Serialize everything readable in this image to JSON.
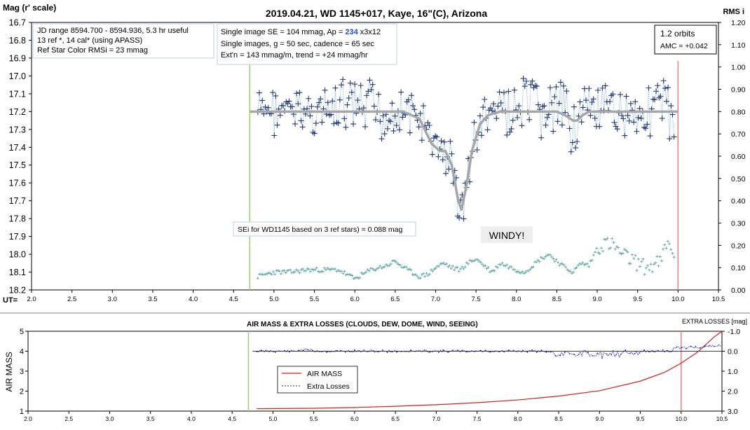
{
  "chart_data": [
    {
      "type": "scatter",
      "title": "2019.04.21, WD 1145+017, Kaye, 16\"(C), Arizona",
      "ylabel": "Mag (r' scale)",
      "ylabel_right": "RMS i",
      "xlabel": "UT=",
      "xlim": [
        2.0,
        10.5
      ],
      "ylim": [
        16.7,
        18.2
      ],
      "ylim_right": [
        0.0,
        1.2
      ],
      "x_ticks": [
        "2.0",
        "2.5",
        "3.0",
        "3.5",
        "4.0",
        "4.5",
        "5.0",
        "5.5",
        "6.0",
        "6.5",
        "7.0",
        "7.5",
        "8.0",
        "8.5",
        "9.0",
        "9.5",
        "10.0",
        "10.5"
      ],
      "y_ticks": [
        "16.7",
        "16.8",
        "16.9",
        "17.0",
        "17.1",
        "17.2",
        "17.3",
        "17.4",
        "17.5",
        "17.6",
        "17.7",
        "17.8",
        "17.9",
        "18.0",
        "18.1",
        "18.2"
      ],
      "y_right_ticks": [
        "1.20",
        "1.10",
        "1.00",
        "0.90",
        "0.80",
        "0.70",
        "0.60",
        "0.50",
        "0.40",
        "0.30",
        "0.20",
        "0.10",
        "0.00"
      ],
      "grid": false,
      "vlines": [
        {
          "x": 4.7,
          "color": "#9bd36b"
        },
        {
          "x": 10.0,
          "color": "#e88080"
        }
      ],
      "annotations": {
        "info_left": [
          "JD range 8594.700 - 8594.936, 5.3 hr useful",
          "13 ref *, 14 cal* (using APASS)",
          "Ref Star Color RMSi = 23 mmag"
        ],
        "info_mid_line1_prefix": "Single image SE = 104 mmag, Ap = ",
        "info_mid_ap": "234",
        "info_mid_line1_suffix": " x3x12",
        "info_mid_line2": "Single images, g = 50 sec, cadence = 65 sec",
        "info_mid_line3": "Ext'n = 143 mmag/m, trend = +24 mmag/hr",
        "orbits": "1.2 orbits",
        "amc": "AMC = +0.042",
        "sei": "SEi for WD1145 based on 3 ref stars) = 0.088 mag",
        "windy": "WINDY!"
      },
      "series": [
        {
          "name": "",
          "kind": "magnitude",
          "color": "#1f3a7a",
          "x_start": 4.8,
          "x_end": 9.95,
          "n_points": 280,
          "baseline": 17.2,
          "seed": 7
        },
        {
          "name": "",
          "kind": "model",
          "color": "#a6a6a6",
          "x": [
            4.7,
            6.6,
            6.8,
            6.95,
            7.05,
            7.12,
            7.2,
            7.28,
            7.32,
            7.38,
            7.45,
            7.55,
            7.65,
            7.8,
            8.0,
            8.5,
            8.6,
            8.7,
            8.75,
            8.82,
            8.9,
            9.0,
            10.0
          ],
          "y": [
            17.2,
            17.2,
            17.24,
            17.38,
            17.42,
            17.42,
            17.5,
            17.7,
            17.75,
            17.62,
            17.42,
            17.27,
            17.22,
            17.2,
            17.2,
            17.2,
            17.22,
            17.25,
            17.25,
            17.22,
            17.2,
            17.2,
            17.2
          ]
        },
        {
          "name": "",
          "kind": "rms",
          "color": "#5ea6a8",
          "x": [
            4.8,
            5.0,
            5.2,
            5.4,
            5.6,
            5.8,
            5.9,
            6.0,
            6.1,
            6.2,
            6.4,
            6.5,
            6.6,
            6.7,
            6.8,
            6.9,
            7.0,
            7.1,
            7.2,
            7.3,
            7.4,
            7.5,
            7.6,
            7.7,
            7.8,
            8.0,
            8.1,
            8.2,
            8.3,
            8.4,
            8.5,
            8.6,
            8.7,
            8.8,
            8.9,
            9.0,
            9.1,
            9.2,
            9.3,
            9.4,
            9.5,
            9.6,
            9.7,
            9.8,
            9.85,
            9.9,
            9.95
          ],
          "y": [
            0.06,
            0.08,
            0.08,
            0.09,
            0.09,
            0.09,
            0.07,
            0.05,
            0.07,
            0.09,
            0.11,
            0.13,
            0.1,
            0.08,
            0.06,
            0.07,
            0.1,
            0.12,
            0.1,
            0.09,
            0.12,
            0.14,
            0.11,
            0.08,
            0.12,
            0.09,
            0.08,
            0.11,
            0.14,
            0.16,
            0.13,
            0.1,
            0.08,
            0.12,
            0.11,
            0.19,
            0.21,
            0.2,
            0.16,
            0.14,
            0.12,
            0.1,
            0.11,
            0.13,
            0.21,
            0.19,
            0.17
          ]
        }
      ]
    },
    {
      "type": "line",
      "title": "AIR MASS & EXTRA LOSSES (CLOUDS, DEW, DOME, WIND, SEEING)",
      "ylabel": "AIR MASS",
      "ylabel_right": "EXTRA LOSSES [mag]",
      "xlim": [
        2.0,
        10.5
      ],
      "ylim": [
        1,
        5
      ],
      "ylim_right": [
        3.0,
        -1.0
      ],
      "x_ticks": [
        "2.0",
        "2.5",
        "3.0",
        "3.5",
        "4.0",
        "4.5",
        "5.0",
        "5.5",
        "6.0",
        "6.5",
        "7.0",
        "7.5",
        "8.0",
        "8.5",
        "9.0",
        "9.5",
        "10.0",
        "10.5"
      ],
      "y_ticks": [
        "5",
        "4",
        "3",
        "2",
        "1"
      ],
      "y_right_ticks": [
        "-1.0",
        "0.0",
        "1.0",
        "2.0",
        "3.0"
      ],
      "legend": {
        "position": "center-left",
        "items": [
          "AIR MASS",
          "Extra Losses"
        ]
      },
      "vlines": [
        {
          "x": 4.7,
          "color": "#9bd36b"
        },
        {
          "x": 10.0,
          "color": "#e88080"
        }
      ],
      "series": [
        {
          "name": "AIR MASS",
          "color": "#d62020",
          "x": [
            4.8,
            5.5,
            6.0,
            6.5,
            7.0,
            7.5,
            8.0,
            8.5,
            9.0,
            9.5,
            9.8,
            10.0,
            10.2,
            10.4,
            10.5
          ],
          "y": [
            1.12,
            1.14,
            1.18,
            1.24,
            1.32,
            1.42,
            1.56,
            1.75,
            2.02,
            2.5,
            2.95,
            3.4,
            3.95,
            4.7,
            5.1
          ]
        },
        {
          "name": "Extra Losses",
          "color": "#1a22c8",
          "x_start": 4.8,
          "x_end": 10.5,
          "n_points": 300,
          "seed": 11
        }
      ]
    }
  ]
}
